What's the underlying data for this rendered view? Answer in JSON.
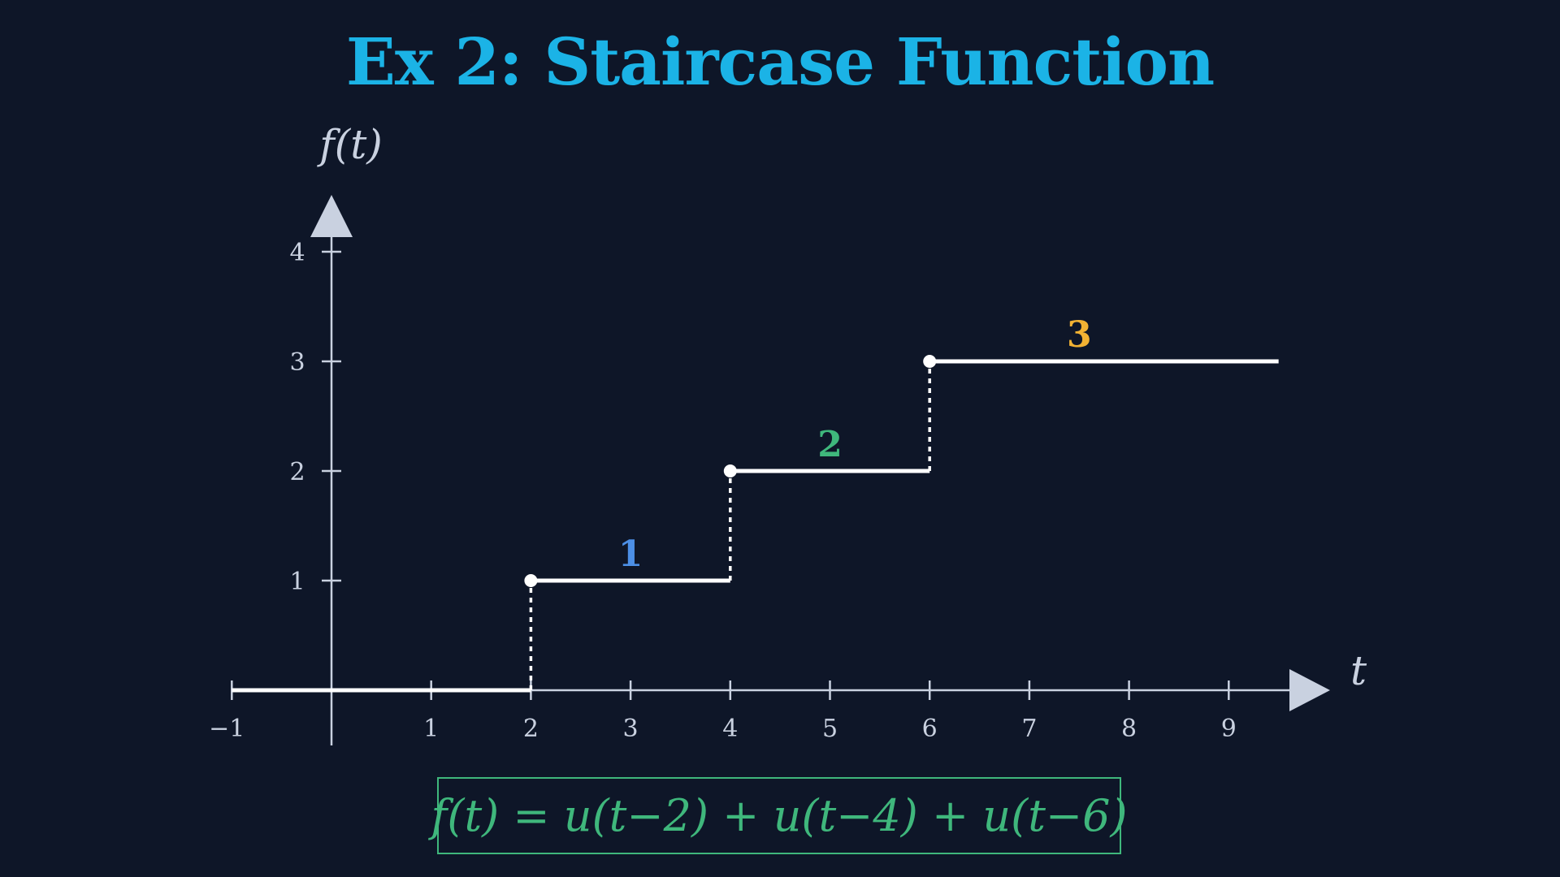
{
  "title": "Ex 2: Staircase Function",
  "formula": "f(t) = u(t−2) + u(t−4) + u(t−6)",
  "colors": {
    "background": "#0e1628",
    "title": "#1bb3e6",
    "axis": "#c9d1e0",
    "line": "#ffffff",
    "formula": "#3fb77c",
    "step1": "#4c8fe6",
    "step2": "#3fb77c",
    "step3": "#f2b233"
  },
  "chart_data": {
    "type": "line",
    "title": "Ex 2: Staircase Function",
    "xlabel": "t",
    "ylabel": "f(t)",
    "xlim": [
      -1,
      9.5
    ],
    "ylim": [
      0,
      4
    ],
    "x_ticks": [
      "−1",
      "1",
      "2",
      "3",
      "4",
      "5",
      "6",
      "7",
      "8",
      "9"
    ],
    "x_tick_values": [
      -1,
      1,
      2,
      3,
      4,
      5,
      6,
      7,
      8,
      9
    ],
    "y_ticks": [
      "1",
      "2",
      "3",
      "4"
    ],
    "y_tick_values": [
      1,
      2,
      3,
      4
    ],
    "grid": false,
    "segments": [
      {
        "x": [
          -1,
          2
        ],
        "y": 0
      },
      {
        "x": [
          2,
          4
        ],
        "y": 1
      },
      {
        "x": [
          4,
          6
        ],
        "y": 2
      },
      {
        "x": [
          6,
          9.5
        ],
        "y": 3
      }
    ],
    "jumps": [
      {
        "x": 2,
        "y": [
          0,
          1
        ]
      },
      {
        "x": 4,
        "y": [
          1,
          2
        ]
      },
      {
        "x": 6,
        "y": [
          2,
          3
        ]
      }
    ],
    "points": [
      {
        "x": 2,
        "y": 1
      },
      {
        "x": 4,
        "y": 2
      },
      {
        "x": 6,
        "y": 3
      }
    ],
    "step_labels": [
      {
        "text": "1",
        "x": 3,
        "y": 1,
        "color": "#4c8fe6"
      },
      {
        "text": "2",
        "x": 5,
        "y": 2,
        "color": "#3fb77c"
      },
      {
        "text": "3",
        "x": 7.5,
        "y": 3,
        "color": "#f2b233"
      }
    ]
  }
}
